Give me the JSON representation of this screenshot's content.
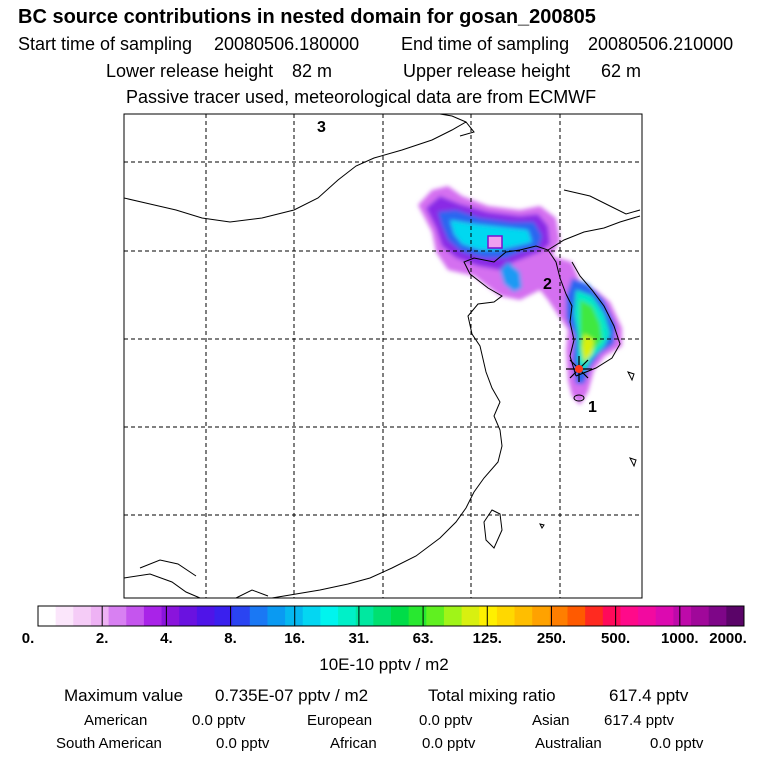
{
  "header": {
    "title": "BC  source contributions in nested domain for gosan_200805",
    "start_label": "Start time of sampling",
    "start_value": "20080506.180000",
    "end_label": "End time of sampling",
    "end_value": "20080506.210000",
    "lower_label": "Lower release height",
    "lower_value": "82 m",
    "upper_label": "Upper release height",
    "upper_value": "62 m",
    "note": "Passive tracer used, meteorological data are from ECMWF"
  },
  "map": {
    "markers": [
      "1",
      "2",
      "3"
    ],
    "receptor_icon": "star-burst-icon"
  },
  "colorbar": {
    "labels": [
      "0.",
      "2.",
      "4.",
      "8.",
      "16.",
      "31.",
      "63.",
      "125.",
      "250.",
      "500.",
      "1000.",
      "2000."
    ],
    "units": "10E-10 pptv / m2",
    "colors": [
      "#ffffff",
      "#fbe6fb",
      "#f5ccf7",
      "#eeb2f4",
      "#d880f2",
      "#c555ee",
      "#a923e8",
      "#8a14dc",
      "#6a12e0",
      "#4f14e8",
      "#3a20ee",
      "#2a44f2",
      "#1a78f4",
      "#0a9af2",
      "#05b8f0",
      "#04d6f2",
      "#00f4ee",
      "#00f0c8",
      "#00e8a0",
      "#00e070",
      "#00dc48",
      "#28e830",
      "#60f020",
      "#a0f418",
      "#d8f010",
      "#fff000",
      "#ffd800",
      "#ffbe00",
      "#ffa200",
      "#ff7e00",
      "#ff5a00",
      "#ff2a20",
      "#ff0a5a",
      "#ff0a8a",
      "#f20aa0",
      "#dc0ab0",
      "#be0aaa",
      "#a0089a",
      "#7e0688",
      "#5a0468"
    ]
  },
  "summary": {
    "max_label": "Maximum value",
    "max_value": "0.735E-07 pptv / m2",
    "total_label": "Total mixing ratio",
    "total_value": "617.4 pptv"
  },
  "regions": [
    {
      "name": "American",
      "value": "0.0 pptv"
    },
    {
      "name": "European",
      "value": "0.0 pptv"
    },
    {
      "name": "Asian",
      "value": "617.4 pptv"
    },
    {
      "name": "South American",
      "value": "0.0 pptv"
    },
    {
      "name": "African",
      "value": "0.0 pptv"
    },
    {
      "name": "Australian",
      "value": "0.0 pptv"
    }
  ]
}
